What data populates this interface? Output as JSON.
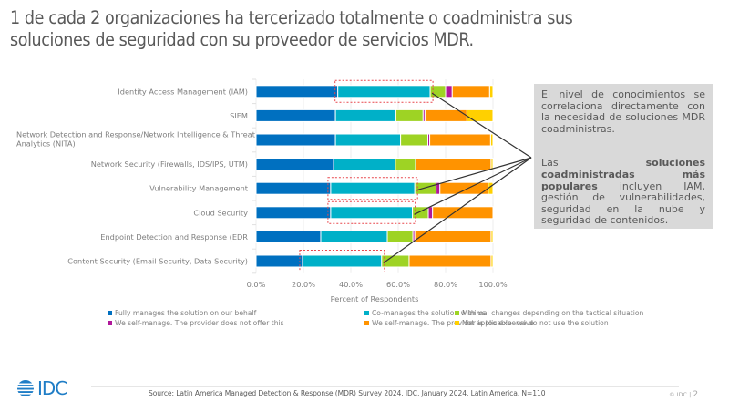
{
  "title": "1 de cada 2 organizaciones ha tercerizado totalmente o coadministra sus soluciones de seguridad con su proveedor de servicios MDR.",
  "chart_data": {
    "type": "bar",
    "orientation": "horizontal",
    "stacked": true,
    "categories": [
      "Identity Access Management (IAM)",
      "SIEM",
      "Network Detection and Response/Network Intelligence & Threat Analytics (NITA)",
      "Network Security (Firewalls, IDS/IPS, UTM)",
      "Vulnerability Management",
      "Cloud Security",
      "Endpoint Detection and Response (EDR",
      "Content Security (Email Security, Data Security)"
    ],
    "series": [
      {
        "name": "Fully manages the solution on our behalf",
        "color": "#0070c0",
        "values": [
          34.5,
          33.5,
          33.5,
          32.7,
          31.5,
          31.5,
          27.3,
          19.6
        ]
      },
      {
        "name": "Co-manages the solution with us",
        "color": "#00b0c8",
        "values": [
          39.0,
          25.5,
          27.5,
          26.1,
          35.5,
          34.5,
          28.1,
          33.4
        ]
      },
      {
        "name": "Minimal changes depending on the tactical situation",
        "color": "#9ed324",
        "values": [
          6.5,
          11.5,
          11.5,
          8.5,
          9.0,
          6.7,
          10.8,
          11.6
        ]
      },
      {
        "name": "We self-manage. The provider does not offer this",
        "color": "#b0179a",
        "values": [
          2.8,
          0.8,
          0.8,
          0.0,
          1.6,
          1.8,
          0.8,
          0.0
        ]
      },
      {
        "name": "We self-manage. The provider is too expensive",
        "color": "#ff9300",
        "values": [
          15.8,
          17.7,
          25.7,
          31.9,
          20.4,
          25.5,
          32.2,
          34.6
        ]
      },
      {
        "name": "Not applicable- we do not use the solution",
        "color": "#ffd000",
        "values": [
          1.4,
          11.0,
          1.0,
          0.8,
          2.0,
          0.0,
          0.8,
          0.8
        ]
      }
    ],
    "highlighted": [
      {
        "category_index": 0,
        "series_index": 1
      },
      {
        "category_index": 4,
        "series_index": 1
      },
      {
        "category_index": 5,
        "series_index": 1
      },
      {
        "category_index": 7,
        "series_index": 1
      }
    ],
    "xlabel": "Percent of Respondents",
    "ylabel": "",
    "xlim": [
      0,
      100
    ],
    "xticks": [
      "0.0%",
      "20.0%",
      "40.0%",
      "60.0%",
      "80.0%",
      "100.0%"
    ],
    "grid": true,
    "legend_position": "bottom"
  },
  "callout": {
    "paragraph1": "El nivel de conocimientos se correlaciona directamente con la necesidad de soluciones MDR coadministras.",
    "paragraph2_prefix": "Las ",
    "paragraph2_bold": "soluciones coadministradas más populares",
    "paragraph2_suffix": " incluyen IAM, gestión de vulnerabilidades, seguridad en la nube y seguridad de contenidos."
  },
  "footer": {
    "logo_text": "IDC",
    "source": "Source:  Latin America Managed Detection & Response (MDR) Survey 2024, IDC, January 2024, Latin America, N=110",
    "copyright": "© IDC",
    "separator": "|",
    "page_number": "2"
  }
}
